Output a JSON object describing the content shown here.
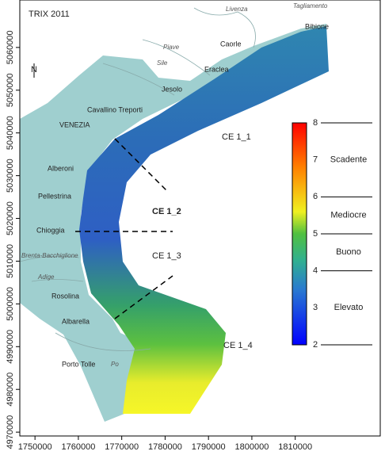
{
  "map": {
    "title": "TRIX 2011",
    "north": "N",
    "xlim": [
      1746500,
      1829600
    ],
    "ylim": [
      4969100,
      5071100
    ],
    "xticks": [
      1750000,
      1760000,
      1770000,
      1780000,
      1790000,
      1800000,
      1810000
    ],
    "yticks": [
      4970000,
      4980000,
      4990000,
      5000000,
      5010000,
      5020000,
      5030000,
      5040000,
      5050000,
      5060000
    ],
    "places": [
      "Tagliamento",
      "Livenza",
      "Bibione",
      "Caorle",
      "Piave",
      "Eraclea",
      "Sile",
      "Jesolo",
      "Cavallino Treporti",
      "VENEZIA",
      "Alberoni",
      "Pellestrina",
      "Chioggia",
      "Brenta-Bacchiglione",
      "Adige",
      "Rosolina",
      "Albarella",
      "Po",
      "Porto Tolle"
    ],
    "zones": [
      "CE 1_1",
      "CE 1_2",
      "CE 1_3",
      "CE 1_4"
    ],
    "colorbar": {
      "lim": [
        2,
        8
      ],
      "ticks": [
        2,
        3,
        4,
        5,
        6,
        7,
        8
      ],
      "classes": [
        {
          "label": "Scadente",
          "range": [
            6,
            8
          ]
        },
        {
          "label": "Mediocre",
          "range": [
            5,
            6
          ]
        },
        {
          "label": "Buono",
          "range": [
            4,
            5
          ]
        },
        {
          "label": "Elevato",
          "range": [
            2,
            4
          ]
        }
      ]
    }
  }
}
